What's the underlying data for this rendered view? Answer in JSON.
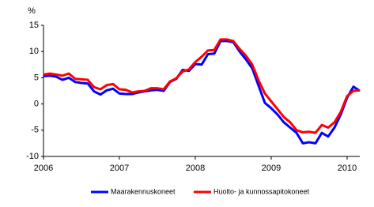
{
  "chart_data": {
    "type": "line",
    "y_unit": "%",
    "categories": [
      "2006",
      null,
      null,
      null,
      null,
      null,
      null,
      null,
      null,
      null,
      null,
      null,
      "2007",
      null,
      null,
      null,
      null,
      null,
      null,
      null,
      null,
      null,
      null,
      null,
      "2008",
      null,
      null,
      null,
      null,
      null,
      null,
      null,
      null,
      null,
      null,
      null,
      "2009",
      null,
      null,
      null,
      null,
      null,
      null,
      null,
      null,
      null,
      null,
      null,
      "2010",
      null,
      null
    ],
    "series": [
      {
        "name": "Maarakennuskoneet",
        "color": "#0000ff",
        "values": [
          5.3,
          5.4,
          5.2,
          4.6,
          5.0,
          4.2,
          4.0,
          3.9,
          2.4,
          1.8,
          2.6,
          2.9,
          2.0,
          1.9,
          1.9,
          2.2,
          2.4,
          2.6,
          2.7,
          2.5,
          4.2,
          4.8,
          6.5,
          6.3,
          7.6,
          7.5,
          9.5,
          9.6,
          12.0,
          12.0,
          11.8,
          10.0,
          8.5,
          6.8,
          3.5,
          0.2,
          -0.8,
          -2.0,
          -3.5,
          -4.5,
          -5.5,
          -7.5,
          -7.3,
          -7.5,
          -5.5,
          -6.2,
          -4.5,
          -2.0,
          1.2,
          3.3,
          2.5
        ]
      },
      {
        "name": "Huolto- ja kunnossapitokoneet",
        "color": "#ff0000",
        "values": [
          5.6,
          5.8,
          5.6,
          5.4,
          5.8,
          4.8,
          4.7,
          4.6,
          3.2,
          2.8,
          3.6,
          3.8,
          2.8,
          2.7,
          2.2,
          2.4,
          2.5,
          3.0,
          3.0,
          2.8,
          4.3,
          4.9,
          6.2,
          6.6,
          8.0,
          9.0,
          10.2,
          10.3,
          12.3,
          12.3,
          12.0,
          10.5,
          9.2,
          7.5,
          4.5,
          2.0,
          0.5,
          -1.0,
          -2.5,
          -3.5,
          -5.0,
          -5.4,
          -5.3,
          -5.5,
          -4.0,
          -4.5,
          -3.5,
          -1.5,
          1.5,
          2.5,
          2.6
        ]
      }
    ],
    "ylim": [
      -10,
      15
    ],
    "yticks": [
      -10,
      -5,
      0,
      5,
      10,
      15
    ],
    "grid": false,
    "legend": "bottom"
  }
}
